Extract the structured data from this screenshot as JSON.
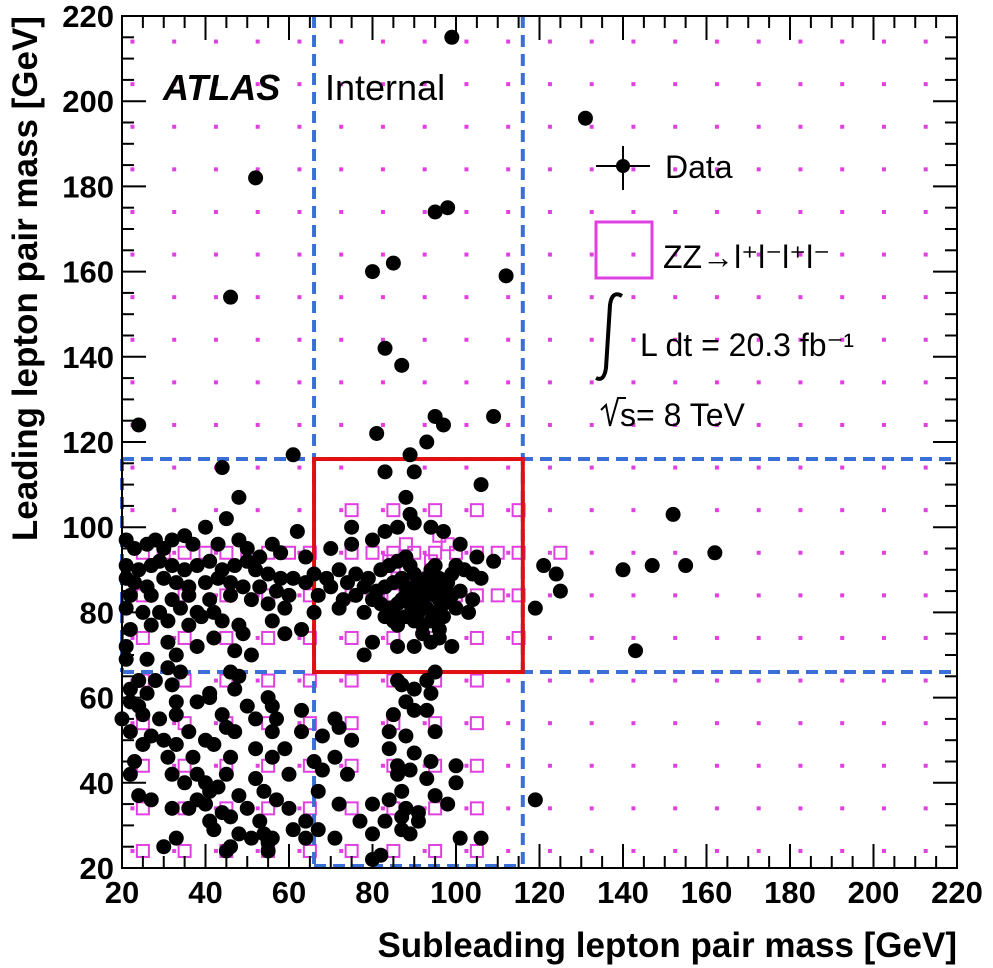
{
  "chart_data": {
    "type": "scatter",
    "title": "",
    "xlabel": "Subleading lepton pair mass [GeV]",
    "ylabel": "Leading lepton pair mass [GeV]",
    "xlim": [
      20,
      220
    ],
    "ylim": [
      20,
      220
    ],
    "xticks": [
      "20",
      "40",
      "60",
      "80",
      "100",
      "120",
      "140",
      "160",
      "180",
      "200",
      "220"
    ],
    "yticks": [
      "20",
      "40",
      "60",
      "80",
      "100",
      "120",
      "140",
      "160",
      "180",
      "200",
      "220"
    ],
    "experiment": "ATLAS",
    "status": "Internal",
    "legend": {
      "data_label": "Data",
      "mc_label": "ZZ→l⁺l⁻l⁺l⁻",
      "lumi_label": "L dt = 20.3 fb⁻¹",
      "energy_label": "s= 8 TeV"
    },
    "colors": {
      "data": "#000000",
      "mc": "#e040e0",
      "signal_box": "#e01010",
      "control_lines": "#3a6fd8"
    },
    "signal_region": {
      "x": [
        66,
        116
      ],
      "y": [
        66,
        116
      ]
    },
    "control_lines": {
      "x": [
        66,
        116
      ],
      "y": [
        66,
        116
      ]
    },
    "zz_expectation": [
      [
        25,
        94
      ],
      [
        30,
        94
      ],
      [
        35,
        94
      ],
      [
        40,
        94
      ],
      [
        45,
        94
      ],
      [
        50,
        94
      ],
      [
        55,
        94
      ],
      [
        60,
        94
      ],
      [
        65,
        94
      ],
      [
        25,
        84
      ],
      [
        35,
        84
      ],
      [
        45,
        84
      ],
      [
        55,
        84
      ],
      [
        65,
        84
      ],
      [
        25,
        74
      ],
      [
        35,
        74
      ],
      [
        45,
        74
      ],
      [
        55,
        74
      ],
      [
        65,
        74
      ],
      [
        25,
        64
      ],
      [
        35,
        64
      ],
      [
        45,
        64
      ],
      [
        55,
        64
      ],
      [
        65,
        64
      ],
      [
        25,
        54
      ],
      [
        35,
        54
      ],
      [
        45,
        54
      ],
      [
        55,
        54
      ],
      [
        65,
        54
      ],
      [
        25,
        44
      ],
      [
        35,
        44
      ],
      [
        45,
        44
      ],
      [
        55,
        44
      ],
      [
        65,
        44
      ],
      [
        25,
        34
      ],
      [
        35,
        34
      ],
      [
        45,
        34
      ],
      [
        55,
        34
      ],
      [
        65,
        34
      ],
      [
        25,
        24
      ],
      [
        35,
        24
      ],
      [
        45,
        24
      ],
      [
        55,
        24
      ],
      [
        65,
        24
      ],
      [
        75,
        94
      ],
      [
        80,
        94
      ],
      [
        85,
        94
      ],
      [
        90,
        94
      ],
      [
        95,
        94
      ],
      [
        100,
        94
      ],
      [
        105,
        94
      ],
      [
        110,
        94
      ],
      [
        75,
        84
      ],
      [
        80,
        84
      ],
      [
        85,
        84
      ],
      [
        90,
        84
      ],
      [
        95,
        84
      ],
      [
        100,
        84
      ],
      [
        105,
        84
      ],
      [
        110,
        84
      ],
      [
        75,
        104
      ],
      [
        85,
        104
      ],
      [
        95,
        104
      ],
      [
        105,
        104
      ],
      [
        75,
        74
      ],
      [
        85,
        74
      ],
      [
        95,
        74
      ],
      [
        105,
        74
      ],
      [
        75,
        64
      ],
      [
        85,
        64
      ],
      [
        95,
        64
      ],
      [
        105,
        64
      ],
      [
        75,
        54
      ],
      [
        85,
        54
      ],
      [
        95,
        54
      ],
      [
        105,
        54
      ],
      [
        75,
        44
      ],
      [
        85,
        44
      ],
      [
        95,
        44
      ],
      [
        105,
        44
      ],
      [
        75,
        34
      ],
      [
        85,
        34
      ],
      [
        95,
        34
      ],
      [
        105,
        34
      ],
      [
        75,
        24
      ],
      [
        85,
        24
      ],
      [
        95,
        24
      ],
      [
        105,
        24
      ],
      [
        115,
        94
      ],
      [
        125,
        94
      ],
      [
        115,
        84
      ],
      [
        115,
        74
      ],
      [
        115,
        104
      ],
      [
        88,
        90
      ],
      [
        86,
        88
      ],
      [
        92,
        88
      ],
      [
        90,
        86
      ],
      [
        84,
        92
      ],
      [
        94,
        92
      ],
      [
        92,
        84
      ],
      [
        88,
        96
      ],
      [
        96,
        98
      ],
      [
        98,
        96
      ]
    ],
    "data_points": [
      [
        99,
        215
      ],
      [
        131,
        196
      ],
      [
        52,
        182
      ],
      [
        95,
        174
      ],
      [
        98,
        175
      ],
      [
        85,
        162
      ],
      [
        80,
        160
      ],
      [
        112,
        159
      ],
      [
        46,
        154
      ],
      [
        83,
        142
      ],
      [
        87,
        138
      ],
      [
        24,
        124
      ],
      [
        109,
        126
      ],
      [
        95,
        126
      ],
      [
        97,
        124
      ],
      [
        81,
        122
      ],
      [
        93,
        120
      ],
      [
        61,
        117
      ],
      [
        89,
        117
      ],
      [
        90,
        113
      ],
      [
        44,
        114
      ],
      [
        83,
        113
      ],
      [
        106,
        110
      ],
      [
        48,
        107
      ],
      [
        88,
        107
      ],
      [
        89,
        103
      ],
      [
        152,
        103
      ],
      [
        40,
        100
      ],
      [
        45,
        102
      ],
      [
        62,
        99
      ],
      [
        75,
        100
      ],
      [
        28,
        97
      ],
      [
        21,
        97
      ],
      [
        32,
        97
      ],
      [
        35,
        98
      ],
      [
        23,
        95
      ],
      [
        26,
        96
      ],
      [
        30,
        95
      ],
      [
        37,
        96
      ],
      [
        43,
        96
      ],
      [
        48,
        97
      ],
      [
        50,
        95
      ],
      [
        56,
        96
      ],
      [
        53,
        93
      ],
      [
        58,
        94
      ],
      [
        64,
        93
      ],
      [
        70,
        95
      ],
      [
        75,
        96
      ],
      [
        80,
        97
      ],
      [
        83,
        99
      ],
      [
        86,
        100
      ],
      [
        90,
        101
      ],
      [
        94,
        100
      ],
      [
        97,
        99
      ],
      [
        101,
        96
      ],
      [
        105,
        93
      ],
      [
        109,
        92
      ],
      [
        121,
        91
      ],
      [
        124,
        89
      ],
      [
        140,
        90
      ],
      [
        147,
        91
      ],
      [
        155,
        91
      ],
      [
        162,
        94
      ],
      [
        21,
        91
      ],
      [
        24,
        90
      ],
      [
        27,
        91
      ],
      [
        29,
        92
      ],
      [
        32,
        91
      ],
      [
        35,
        90
      ],
      [
        38,
        91
      ],
      [
        41,
        92
      ],
      [
        44,
        90
      ],
      [
        47,
        91
      ],
      [
        50,
        92
      ],
      [
        52,
        90
      ],
      [
        55,
        89
      ],
      [
        58,
        88
      ],
      [
        61,
        88
      ],
      [
        66,
        89
      ],
      [
        69,
        88
      ],
      [
        72,
        90
      ],
      [
        76,
        89
      ],
      [
        79,
        88
      ],
      [
        82,
        90
      ],
      [
        84,
        91
      ],
      [
        86,
        92
      ],
      [
        88,
        93
      ],
      [
        89,
        91
      ],
      [
        90,
        89
      ],
      [
        91,
        87
      ],
      [
        92,
        86
      ],
      [
        93,
        88
      ],
      [
        94,
        90
      ],
      [
        95,
        91
      ],
      [
        96,
        88
      ],
      [
        97,
        86
      ],
      [
        98,
        87
      ],
      [
        99,
        89
      ],
      [
        100,
        91
      ],
      [
        102,
        90
      ],
      [
        104,
        89
      ],
      [
        106,
        88
      ],
      [
        21,
        88
      ],
      [
        23,
        87
      ],
      [
        26,
        86
      ],
      [
        30,
        88
      ],
      [
        33,
        87
      ],
      [
        36,
        86
      ],
      [
        40,
        87
      ],
      [
        43,
        88
      ],
      [
        46,
        87
      ],
      [
        49,
        86
      ],
      [
        53,
        86
      ],
      [
        57,
        85
      ],
      [
        64,
        87
      ],
      [
        70,
        86
      ],
      [
        74,
        87
      ],
      [
        78,
        86
      ],
      [
        81,
        85
      ],
      [
        83,
        86
      ],
      [
        85,
        87
      ],
      [
        87,
        88
      ],
      [
        88,
        86
      ],
      [
        89,
        85
      ],
      [
        90,
        84
      ],
      [
        91,
        85
      ],
      [
        92,
        83
      ],
      [
        93,
        85
      ],
      [
        94,
        86
      ],
      [
        95,
        84
      ],
      [
        96,
        83
      ],
      [
        97,
        82
      ],
      [
        99,
        84
      ],
      [
        101,
        85
      ],
      [
        104,
        83
      ],
      [
        22,
        84
      ],
      [
        27,
        84
      ],
      [
        32,
        83
      ],
      [
        36,
        84
      ],
      [
        41,
        83
      ],
      [
        46,
        84
      ],
      [
        51,
        83
      ],
      [
        60,
        84
      ],
      [
        67,
        84
      ],
      [
        73,
        83
      ],
      [
        76,
        84
      ],
      [
        80,
        83
      ],
      [
        82,
        82
      ],
      [
        84,
        81
      ],
      [
        86,
        82
      ],
      [
        87,
        83
      ],
      [
        88,
        84
      ],
      [
        89,
        82
      ],
      [
        90,
        81
      ],
      [
        91,
        80
      ],
      [
        93,
        81
      ],
      [
        95,
        80
      ],
      [
        97,
        79
      ],
      [
        100,
        81
      ],
      [
        103,
        80
      ],
      [
        119,
        81
      ],
      [
        125,
        85
      ],
      [
        21,
        81
      ],
      [
        25,
        80
      ],
      [
        29,
        80
      ],
      [
        34,
        81
      ],
      [
        38,
        80
      ],
      [
        42,
        80
      ],
      [
        55,
        82
      ],
      [
        59,
        81
      ],
      [
        66,
        80
      ],
      [
        72,
        81
      ],
      [
        78,
        80
      ],
      [
        83,
        79
      ],
      [
        85,
        78
      ],
      [
        86,
        79
      ],
      [
        88,
        79
      ],
      [
        90,
        78
      ],
      [
        92,
        77
      ],
      [
        94,
        78
      ],
      [
        96,
        76
      ],
      [
        22,
        76
      ],
      [
        27,
        77
      ],
      [
        31,
        78
      ],
      [
        36,
        77
      ],
      [
        39,
        79
      ],
      [
        44,
        78
      ],
      [
        48,
        77
      ],
      [
        56,
        78
      ],
      [
        63,
        76
      ],
      [
        86,
        77
      ],
      [
        92,
        75
      ],
      [
        96,
        74
      ],
      [
        21,
        72
      ],
      [
        31,
        73
      ],
      [
        42,
        74
      ],
      [
        49,
        75
      ],
      [
        59,
        75
      ],
      [
        80,
        73
      ],
      [
        86,
        72
      ],
      [
        90,
        72
      ],
      [
        94,
        73
      ],
      [
        99,
        72
      ],
      [
        143,
        71
      ],
      [
        21,
        69
      ],
      [
        26,
        69
      ],
      [
        33,
        70
      ],
      [
        38,
        72
      ],
      [
        47,
        71
      ],
      [
        51,
        70
      ],
      [
        78,
        70
      ],
      [
        31,
        67
      ],
      [
        34,
        66
      ],
      [
        46,
        66
      ],
      [
        48,
        65
      ],
      [
        95,
        66
      ],
      [
        24,
        64
      ],
      [
        28,
        64
      ],
      [
        32,
        63
      ],
      [
        86,
        64
      ],
      [
        93,
        64
      ],
      [
        22,
        62
      ],
      [
        26,
        61
      ],
      [
        41,
        61
      ],
      [
        47,
        62
      ],
      [
        55,
        60
      ],
      [
        87,
        63
      ],
      [
        90,
        62
      ],
      [
        22,
        59
      ],
      [
        24,
        58
      ],
      [
        33,
        59
      ],
      [
        38,
        59
      ],
      [
        41,
        60
      ],
      [
        50,
        58
      ],
      [
        56,
        58
      ],
      [
        88,
        59
      ],
      [
        94,
        61
      ],
      [
        20,
        55
      ],
      [
        25,
        56
      ],
      [
        29,
        55
      ],
      [
        33,
        56
      ],
      [
        44,
        56
      ],
      [
        45,
        53
      ],
      [
        52,
        55
      ],
      [
        57,
        55
      ],
      [
        63,
        57
      ],
      [
        71,
        55
      ],
      [
        85,
        56
      ],
      [
        90,
        57
      ],
      [
        93,
        57
      ],
      [
        22,
        52
      ],
      [
        27,
        51
      ],
      [
        36,
        52
      ],
      [
        40,
        50
      ],
      [
        47,
        52
      ],
      [
        56,
        52
      ],
      [
        63,
        52
      ],
      [
        68,
        51
      ],
      [
        72,
        53
      ],
      [
        84,
        52
      ],
      [
        88,
        51
      ],
      [
        95,
        52
      ],
      [
        25,
        49
      ],
      [
        30,
        50
      ],
      [
        33,
        49
      ],
      [
        42,
        49
      ],
      [
        52,
        48
      ],
      [
        59,
        48
      ],
      [
        75,
        50
      ],
      [
        84,
        48
      ],
      [
        90,
        47
      ],
      [
        23,
        45
      ],
      [
        31,
        46
      ],
      [
        37,
        46
      ],
      [
        46,
        46
      ],
      [
        56,
        46
      ],
      [
        66,
        45
      ],
      [
        71,
        46
      ],
      [
        86,
        44
      ],
      [
        94,
        45
      ],
      [
        100,
        44
      ],
      [
        32,
        42
      ],
      [
        38,
        42
      ],
      [
        40,
        40
      ],
      [
        45,
        42
      ],
      [
        52,
        41
      ],
      [
        60,
        42
      ],
      [
        68,
        43
      ],
      [
        74,
        42
      ],
      [
        86,
        42
      ],
      [
        89,
        43
      ],
      [
        22,
        42
      ],
      [
        35,
        40
      ],
      [
        43,
        39
      ],
      [
        54,
        38
      ],
      [
        93,
        41
      ],
      [
        100,
        40
      ],
      [
        24,
        37
      ],
      [
        27,
        36
      ],
      [
        38,
        36
      ],
      [
        41,
        38
      ],
      [
        48,
        37
      ],
      [
        57,
        36
      ],
      [
        67,
        38
      ],
      [
        84,
        36
      ],
      [
        87,
        38
      ],
      [
        95,
        37
      ],
      [
        119,
        36
      ],
      [
        32,
        34
      ],
      [
        36,
        34
      ],
      [
        40,
        35
      ],
      [
        44,
        33
      ],
      [
        50,
        34
      ],
      [
        60,
        34
      ],
      [
        72,
        35
      ],
      [
        80,
        35
      ],
      [
        88,
        34
      ],
      [
        91,
        33
      ],
      [
        98,
        35
      ],
      [
        41,
        31
      ],
      [
        46,
        32
      ],
      [
        53,
        31
      ],
      [
        64,
        31
      ],
      [
        77,
        31
      ],
      [
        83,
        31
      ],
      [
        87,
        32
      ],
      [
        91,
        31
      ],
      [
        42,
        29
      ],
      [
        48,
        28
      ],
      [
        54,
        28
      ],
      [
        56,
        27
      ],
      [
        61,
        29
      ],
      [
        67,
        29
      ],
      [
        80,
        28
      ],
      [
        87,
        29
      ],
      [
        89,
        28
      ],
      [
        33,
        27
      ],
      [
        51,
        27
      ],
      [
        55,
        26
      ],
      [
        64,
        27
      ],
      [
        71,
        27
      ],
      [
        101,
        27
      ],
      [
        106,
        27
      ],
      [
        30,
        25
      ],
      [
        45,
        24
      ],
      [
        46,
        25
      ],
      [
        55,
        24
      ],
      [
        80,
        22
      ],
      [
        82,
        23
      ]
    ]
  }
}
